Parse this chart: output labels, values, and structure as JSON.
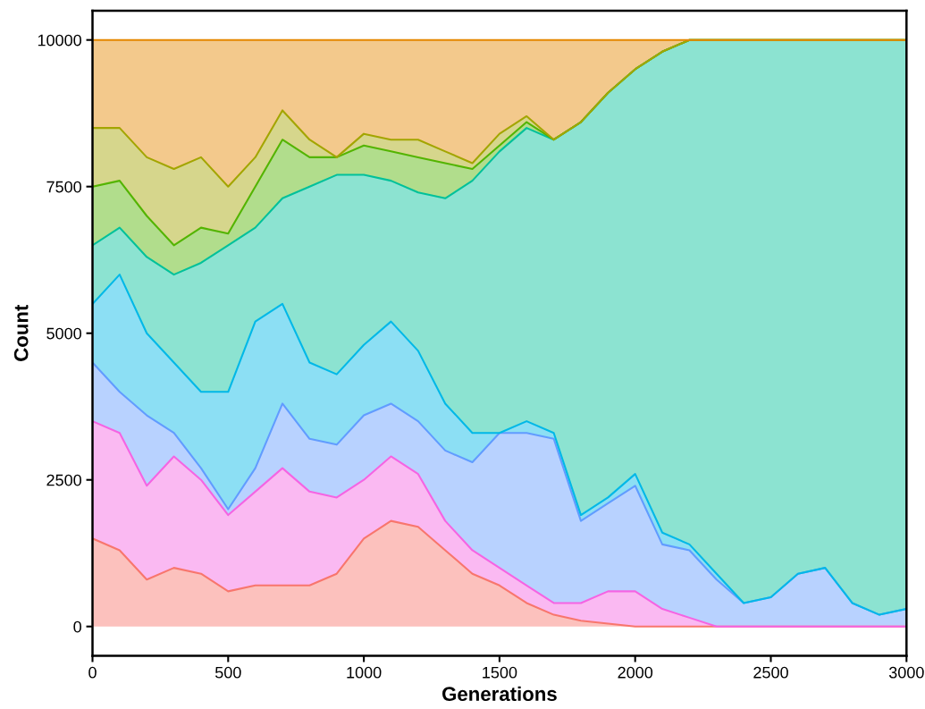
{
  "chart_data": {
    "type": "area",
    "stacked": true,
    "xlabel": "Generations",
    "ylabel": "Count",
    "x": [
      0,
      100,
      200,
      300,
      400,
      500,
      600,
      700,
      800,
      900,
      1000,
      1100,
      1200,
      1300,
      1400,
      1500,
      1600,
      1700,
      1800,
      1900,
      2000,
      2100,
      2200,
      2300,
      2400,
      2500,
      2600,
      2700,
      2800,
      2900,
      3000
    ],
    "series": [
      {
        "color": "#f8766d",
        "values": [
          1500,
          1300,
          800,
          1000,
          900,
          600,
          700,
          700,
          700,
          900,
          1500,
          1800,
          1700,
          1300,
          900,
          700,
          400,
          200,
          100,
          50,
          0,
          0,
          0,
          0,
          0,
          0,
          0,
          0,
          0,
          0,
          0
        ]
      },
      {
        "color": "#f564e3",
        "values": [
          2000,
          2000,
          1600,
          1900,
          1600,
          1300,
          1600,
          2000,
          1600,
          1300,
          1000,
          1100,
          900,
          500,
          400,
          300,
          300,
          200,
          300,
          550,
          600,
          300,
          150,
          0,
          0,
          0,
          0,
          0,
          0,
          0,
          0
        ]
      },
      {
        "color": "#619cff",
        "values": [
          1000,
          700,
          1200,
          400,
          200,
          100,
          400,
          1100,
          900,
          900,
          1100,
          900,
          900,
          1200,
          1500,
          2300,
          2600,
          2800,
          1400,
          1500,
          1800,
          1100,
          1150,
          800,
          400,
          500,
          900,
          1000,
          400,
          200,
          300
        ]
      },
      {
        "color": "#00b8e7",
        "values": [
          1000,
          2000,
          1400,
          1200,
          1300,
          2000,
          2500,
          1700,
          1300,
          1200,
          1200,
          1400,
          1200,
          800,
          500,
          0,
          200,
          100,
          100,
          100,
          200,
          200,
          100,
          100,
          0,
          0,
          0,
          0,
          0,
          0,
          0
        ]
      },
      {
        "color": "#00c19a",
        "values": [
          1000,
          800,
          1300,
          1500,
          2200,
          2500,
          1600,
          1800,
          3000,
          3400,
          2900,
          2400,
          2700,
          3500,
          4300,
          4800,
          5000,
          5000,
          6700,
          6900,
          6900,
          8200,
          8600,
          9100,
          9600,
          9500,
          9100,
          9000,
          9600,
          9800,
          9700
        ]
      },
      {
        "color": "#53b400",
        "values": [
          1000,
          800,
          700,
          500,
          600,
          200,
          700,
          1000,
          500,
          300,
          500,
          500,
          600,
          600,
          200,
          100,
          100,
          0,
          0,
          0,
          0,
          0,
          0,
          0,
          0,
          0,
          0,
          0,
          0,
          0,
          0
        ]
      },
      {
        "color": "#a3a500",
        "values": [
          1000,
          900,
          1000,
          1300,
          1200,
          800,
          500,
          500,
          300,
          0,
          200,
          200,
          300,
          200,
          100,
          200,
          100,
          0,
          0,
          0,
          0,
          0,
          0,
          0,
          0,
          0,
          0,
          0,
          0,
          0,
          0
        ]
      },
      {
        "color": "#e58700",
        "values": [
          1500,
          1500,
          2000,
          2200,
          2000,
          2500,
          2000,
          1200,
          1700,
          2000,
          1600,
          1700,
          1700,
          1900,
          2100,
          1600,
          1300,
          1700,
          1400,
          900,
          500,
          200,
          0,
          0,
          0,
          0,
          0,
          0,
          0,
          0,
          0
        ]
      }
    ],
    "xlim": [
      0,
      3000
    ],
    "ylim": [
      -500,
      10500
    ],
    "xticks": [
      0,
      500,
      1000,
      1500,
      2000,
      2500,
      3000
    ],
    "yticks": [
      0,
      2500,
      5000,
      7500,
      10000
    ],
    "grid": false,
    "legend": false
  }
}
